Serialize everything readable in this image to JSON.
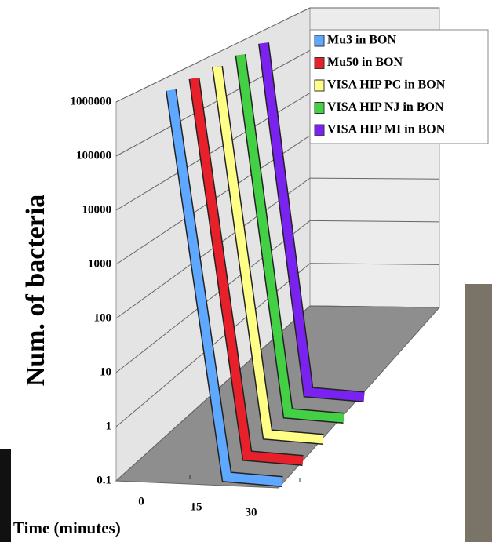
{
  "chart_data": {
    "type": "line3d",
    "x_label": "Time (minutes)",
    "y_label": "Num. of bacteria",
    "x": [
      0,
      15,
      30
    ],
    "xticks": [
      0,
      15,
      30
    ],
    "ylim": [
      0.1,
      1000000
    ],
    "yticks": [
      0.1,
      1,
      10,
      100,
      1000,
      10000,
      100000,
      1000000
    ],
    "log_scale": true,
    "grid": true,
    "legend": "top-right",
    "series": [
      {
        "name": "Mu3 in BON",
        "color": "#5fa8ff",
        "values": [
          1000000,
          0.1,
          0.1
        ]
      },
      {
        "name": "Mu50 in BON",
        "color": "#e8202a",
        "values": [
          1000000,
          0.1,
          0.1
        ]
      },
      {
        "name": "VISA HIP PC in BON",
        "color": "#ffff88",
        "values": [
          1000000,
          0.1,
          0.1
        ]
      },
      {
        "name": "VISA HIP NJ in BON",
        "color": "#44d044",
        "values": [
          1000000,
          0.1,
          0.1
        ]
      },
      {
        "name": "VISA HIP MI in BON",
        "color": "#7a22f0",
        "values": [
          1000000,
          0.1,
          0.1
        ]
      }
    ]
  }
}
